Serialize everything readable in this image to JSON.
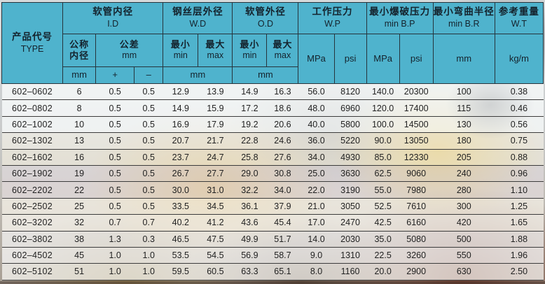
{
  "colors": {
    "header_bg": "#4fb3cd",
    "header_text": "#14222c",
    "border": "#26343c",
    "row_line": "#3c3c3c"
  },
  "table": {
    "header": {
      "type": {
        "zh": "产品代号",
        "en": "TYPE"
      },
      "groups": [
        {
          "zh": "软管内径",
          "en": "I.D"
        },
        {
          "zh": "钢丝层外径",
          "en": "W.D"
        },
        {
          "zh": "软管外径",
          "en": "O.D"
        },
        {
          "zh": "工作压力",
          "en": "W.P"
        },
        {
          "zh": "最小爆破压力",
          "en": "min B.P"
        },
        {
          "zh": "最小弯曲半径",
          "en": "min B.R"
        },
        {
          "zh": "参考重量",
          "en": "W.T"
        }
      ],
      "sub": {
        "nominal_line1": "公称",
        "nominal_line2": "内径",
        "tolerance_zh": "公差",
        "tolerance_unit": "mm",
        "min_zh": "最小",
        "min_en": "min",
        "max_zh": "最大",
        "max_en": "max",
        "mpa": "MPa",
        "psi": "psi",
        "unit_mm": "mm",
        "unit_kgm": "kg/m",
        "plus": "+",
        "minus": "–"
      }
    },
    "rows": [
      [
        "602–0602",
        "6",
        "0.5",
        "0.5",
        "12.9",
        "13.9",
        "14.9",
        "16.3",
        "56.0",
        "8120",
        "140.0",
        "20300",
        "100",
        "0.38"
      ],
      [
        "602–0802",
        "8",
        "0.5",
        "0.5",
        "14.9",
        "15.9",
        "17.2",
        "18.6",
        "48.0",
        "6960",
        "120.0",
        "17400",
        "115",
        "0.46"
      ],
      [
        "602–1002",
        "10",
        "0.5",
        "0.5",
        "16.9",
        "17.9",
        "19.2",
        "20.6",
        "40.0",
        "5800",
        "100.0",
        "14500",
        "130",
        "0.56"
      ],
      [
        "602–1302",
        "13",
        "0.5",
        "0.5",
        "20.7",
        "21.7",
        "22.8",
        "24.6",
        "36.0",
        "5220",
        "90.0",
        "13050",
        "180",
        "0.75"
      ],
      [
        "602–1602",
        "16",
        "0.5",
        "0.5",
        "23.7",
        "24.7",
        "25.8",
        "27.6",
        "34.0",
        "4930",
        "85.0",
        "12330",
        "205",
        "0.88"
      ],
      [
        "602–1902",
        "19",
        "0.5",
        "0.5",
        "26.7",
        "27.7",
        "29.0",
        "30.8",
        "25.0",
        "3630",
        "62.5",
        "9060",
        "240",
        "0.96"
      ],
      [
        "602–2202",
        "22",
        "0.5",
        "0.5",
        "30.0",
        "31.0",
        "32.2",
        "34.0",
        "22.0",
        "3190",
        "55.0",
        "7980",
        "280",
        "1.10"
      ],
      [
        "602–2502",
        "25",
        "0.5",
        "0.5",
        "33.5",
        "34.5",
        "36.1",
        "37.9",
        "21.0",
        "3050",
        "52.5",
        "7610",
        "300",
        "1.25"
      ],
      [
        "602–3202",
        "32",
        "0.7",
        "0.7",
        "40.2",
        "41.2",
        "43.6",
        "45.4",
        "17.0",
        "2470",
        "42.5",
        "6160",
        "420",
        "1.65"
      ],
      [
        "602–3802",
        "38",
        "1.3",
        "0.3",
        "46.5",
        "47.5",
        "49.9",
        "51.7",
        "14.0",
        "2030",
        "35.0",
        "5080",
        "500",
        "1.88"
      ],
      [
        "602–4502",
        "45",
        "1.0",
        "1.0",
        "53.5",
        "54.5",
        "56.9",
        "58.7",
        "9.0",
        "1310",
        "22.5",
        "3260",
        "550",
        "1.96"
      ],
      [
        "602–5102",
        "51",
        "1.0",
        "1.0",
        "59.5",
        "60.5",
        "63.3",
        "65.1",
        "8.0",
        "1160",
        "20.0",
        "2900",
        "630",
        "2.50"
      ]
    ]
  }
}
